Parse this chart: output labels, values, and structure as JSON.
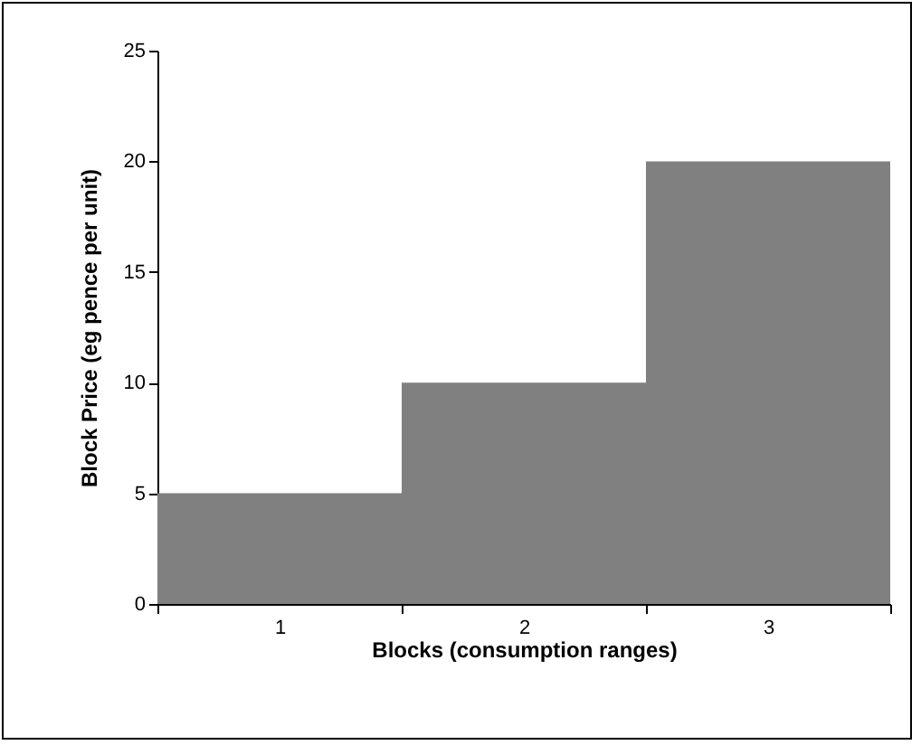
{
  "chart_data": {
    "type": "bar",
    "xlabel": "Blocks (consumption  ranges)",
    "ylabel": "Block Price (eg pence per unit)",
    "categories": [
      "1",
      "2",
      "3"
    ],
    "values": [
      5,
      10,
      20
    ],
    "color": "#808080",
    "ylim": [
      0,
      25
    ],
    "yticks": [
      0,
      5,
      10,
      15,
      20,
      25
    ],
    "grid": false
  }
}
